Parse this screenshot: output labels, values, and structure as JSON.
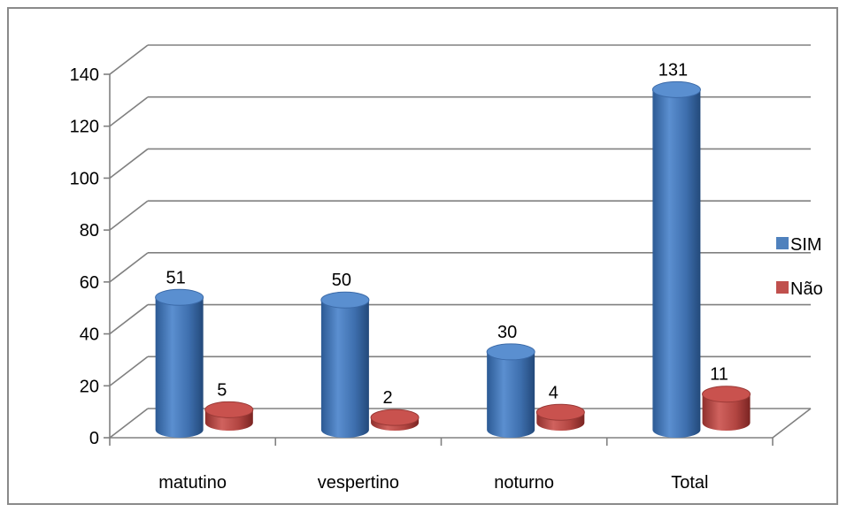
{
  "chart_data": {
    "type": "bar",
    "categories": [
      "matutino",
      "vespertino",
      "noturno",
      "Total"
    ],
    "series": [
      {
        "name": "SIM",
        "values": [
          51,
          50,
          30,
          131
        ]
      },
      {
        "name": "Não",
        "values": [
          5,
          2,
          4,
          11
        ]
      }
    ],
    "ylim": [
      0,
      140
    ],
    "yticks": [
      "0",
      "20",
      "40",
      "60",
      "80",
      "100",
      "120",
      "140"
    ],
    "grid": true,
    "legend_position": "right",
    "title": "",
    "xlabel": "",
    "ylabel": ""
  },
  "colors": {
    "SIM": "#4f81bd",
    "Não": "#c0504d",
    "gridline": "#808080",
    "frame": "#8a8a8a"
  }
}
